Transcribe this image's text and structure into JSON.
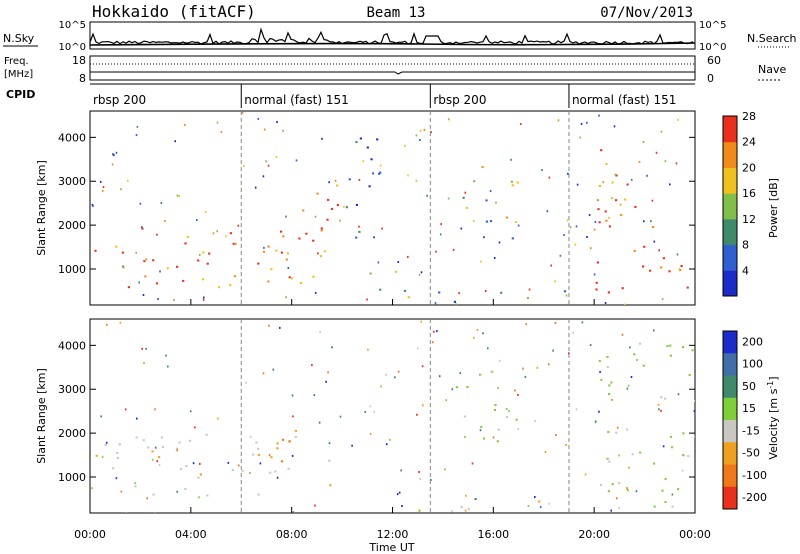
{
  "header": {
    "station": "Hokkaido (fitACF)",
    "beam": "Beam 13",
    "date": "07/Nov/2013"
  },
  "noise_panel": {
    "left_label": "N.Sky",
    "right_label": "N.Search",
    "left_ticks": [
      "10^5",
      "10^0"
    ],
    "right_ticks": [
      "10^5",
      "10^0"
    ]
  },
  "freq_panel": {
    "left_label_line1": "Freq.",
    "left_label_line2": "[MHz]",
    "right_label": "Nave",
    "left_ticks": [
      "18",
      "8"
    ],
    "right_ticks": [
      "60",
      "0"
    ]
  },
  "cpid": {
    "label": "CPID",
    "segments": [
      {
        "start_hr": 0.0,
        "name": "rbsp 200"
      },
      {
        "start_hr": 6.0,
        "name": "normal (fast) 151"
      },
      {
        "start_hr": 13.5,
        "name": "rbsp 200"
      },
      {
        "start_hr": 19.0,
        "name": "normal (fast) 151"
      }
    ]
  },
  "chart_data": [
    {
      "type": "heatmap",
      "quantity": "Power",
      "ylabel": "Slant Range [km]",
      "xlim_hours": [
        0,
        24
      ],
      "ylim_km": [
        180,
        4600
      ],
      "yticks": [
        "1000",
        "2000",
        "3000",
        "4000"
      ],
      "colorbar": {
        "label": "Power [dB]",
        "ticks": [
          "4",
          "8",
          "12",
          "16",
          "20",
          "24",
          "28"
        ],
        "colors": [
          "#1c2cc8",
          "#2f5fd0",
          "#3f8a6a",
          "#7fbf4a",
          "#f0c020",
          "#f08a18",
          "#e8301c"
        ]
      },
      "echo_regions": [
        {
          "t": [
            0.0,
            9.5
          ],
          "r": [
            600,
            2000
          ],
          "level": "24-28"
        },
        {
          "t": [
            6.0,
            9.8
          ],
          "r": [
            800,
            3000
          ],
          "level": "28"
        },
        {
          "t": [
            9.8,
            11.5
          ],
          "r": [
            1500,
            4200
          ],
          "level": "4-12"
        },
        {
          "t": [
            10.5,
            13.0
          ],
          "r": [
            300,
            1000
          ],
          "level": "8-16"
        },
        {
          "t": [
            13.0,
            19.0
          ],
          "r": [
            250,
            550
          ],
          "level": "4-16"
        },
        {
          "t": [
            14.5,
            17.0
          ],
          "r": [
            1700,
            3500
          ],
          "level": "8-24"
        },
        {
          "t": [
            20.0,
            24.0
          ],
          "r": [
            300,
            4200
          ],
          "level": "24-28"
        }
      ]
    },
    {
      "type": "heatmap",
      "quantity": "Velocity",
      "ylabel": "Slant Range [km]",
      "xlabel": "Time UT",
      "xlim_hours": [
        0,
        24
      ],
      "xticks": [
        "00:00",
        "04:00",
        "08:00",
        "12:00",
        "16:00",
        "20:00",
        "00:00"
      ],
      "ylim_km": [
        180,
        4600
      ],
      "yticks": [
        "1000",
        "2000",
        "3000",
        "4000"
      ],
      "colorbar": {
        "label": "Velocity [m s^-1]",
        "ticks": [
          "200",
          "100",
          "50",
          "15",
          "-15",
          "-50",
          "-100",
          "-200"
        ],
        "colors": [
          "#1c2cc8",
          "#3f6ea8",
          "#3f8a6a",
          "#7fcf3a",
          "#c8c8c0",
          "#f0a020",
          "#f07818",
          "#e8301c"
        ]
      },
      "echo_regions": [
        {
          "t": [
            0.0,
            9.5
          ],
          "r": [
            600,
            2000
          ],
          "level": "-15..15"
        },
        {
          "t": [
            6.5,
            8.5
          ],
          "r": [
            600,
            2500
          ],
          "level": "-50..-15"
        },
        {
          "t": [
            13.0,
            19.0
          ],
          "r": [
            250,
            550
          ],
          "level": "-50..50"
        },
        {
          "t": [
            14.5,
            17.0
          ],
          "r": [
            1700,
            3500
          ],
          "level": "15..50"
        },
        {
          "t": [
            20.0,
            24.0
          ],
          "r": [
            300,
            4200
          ],
          "level": "15..50"
        }
      ]
    }
  ]
}
